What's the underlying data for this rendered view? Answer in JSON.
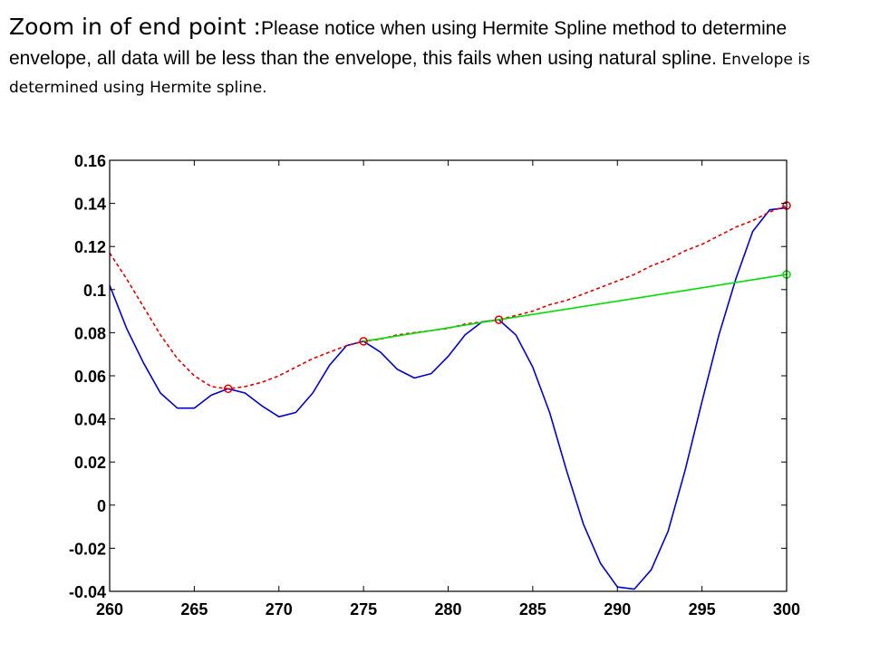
{
  "caption": {
    "lead": "Zoom in of end point :",
    "body": "Please notice when using Hermite Spline method to determine envelope, all data will be less than the envelope, this fails when using natural spline.",
    "tail": " Envelope is determined using Hermite spline."
  },
  "colors": {
    "signal": "#0000cc",
    "envelope": "#dd0000",
    "secant": "#00dd00",
    "axes": "#000000"
  },
  "chart_data": {
    "type": "line",
    "title": "",
    "xlabel": "",
    "ylabel": "",
    "xlim": [
      260,
      300
    ],
    "ylim": [
      -0.04,
      0.16
    ],
    "xticks": [
      260,
      265,
      270,
      275,
      280,
      285,
      290,
      295,
      300
    ],
    "xtick_labels": [
      "260",
      "265",
      "270",
      "275",
      "280",
      "285",
      "290",
      "295",
      "300"
    ],
    "yticks": [
      -0.04,
      -0.02,
      0,
      0.02,
      0.04,
      0.06,
      0.08,
      0.1,
      0.12,
      0.14,
      0.16
    ],
    "ytick_labels": [
      "-0.04",
      "-0.02",
      "0",
      "0.02",
      "0.04",
      "0.06",
      "0.08",
      "0.1",
      "0.12",
      "0.14",
      "0.16"
    ],
    "grid": false,
    "series": [
      {
        "style": "solid",
        "color": "#0000cc",
        "x": [
          260,
          261,
          262,
          263,
          264,
          265,
          266,
          267,
          268,
          269,
          270,
          271,
          272,
          273,
          274,
          275,
          276,
          277,
          278,
          279,
          280,
          281,
          282,
          283,
          284,
          285,
          286,
          287,
          288,
          289,
          290,
          291,
          292,
          293,
          294,
          295,
          296,
          297,
          298,
          299,
          300
        ],
        "y": [
          0.102,
          0.082,
          0.066,
          0.052,
          0.045,
          0.045,
          0.051,
          0.054,
          0.052,
          0.046,
          0.041,
          0.043,
          0.052,
          0.065,
          0.074,
          0.076,
          0.071,
          0.063,
          0.059,
          0.061,
          0.069,
          0.079,
          0.085,
          0.086,
          0.079,
          0.064,
          0.043,
          0.016,
          -0.009,
          -0.027,
          -0.038,
          -0.039,
          -0.03,
          -0.012,
          0.016,
          0.048,
          0.079,
          0.105,
          0.127,
          0.137,
          0.138
        ]
      },
      {
        "style": "dashed",
        "color": "#dd0000",
        "x": [
          260,
          261,
          262,
          263,
          264,
          265,
          266,
          267,
          268,
          269,
          270,
          271,
          272,
          273,
          274,
          275,
          276,
          277,
          278,
          279,
          280,
          281,
          282,
          283,
          284,
          285,
          286,
          287,
          288,
          289,
          290,
          291,
          292,
          293,
          294,
          295,
          296,
          297,
          298,
          299,
          300
        ],
        "y": [
          0.117,
          0.105,
          0.092,
          0.079,
          0.068,
          0.06,
          0.055,
          0.054,
          0.055,
          0.057,
          0.06,
          0.064,
          0.068,
          0.071,
          0.074,
          0.076,
          0.077,
          0.079,
          0.08,
          0.081,
          0.082,
          0.084,
          0.085,
          0.086,
          0.088,
          0.09,
          0.093,
          0.095,
          0.098,
          0.101,
          0.104,
          0.107,
          0.111,
          0.114,
          0.118,
          0.121,
          0.125,
          0.129,
          0.132,
          0.136,
          0.139
        ]
      },
      {
        "style": "solid",
        "color": "#00dd00",
        "x": [
          275,
          283,
          300
        ],
        "y": [
          0.076,
          0.086,
          0.107
        ]
      }
    ],
    "markers": [
      {
        "x": 267,
        "y": 0.054,
        "color": "#dd0000"
      },
      {
        "x": 275,
        "y": 0.076,
        "color": "#dd0000"
      },
      {
        "x": 283,
        "y": 0.086,
        "color": "#dd0000"
      },
      {
        "x": 300,
        "y": 0.139,
        "color": "#dd0000"
      },
      {
        "x": 300,
        "y": 0.107,
        "color": "#00dd00"
      }
    ]
  }
}
